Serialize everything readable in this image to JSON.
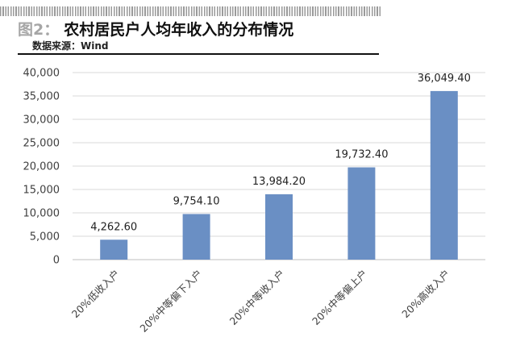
{
  "figure": {
    "number": "图2：",
    "title": "农村居民户人均年收入的分布情况",
    "source": "数据来源：Wind"
  },
  "chart_data": {
    "type": "bar",
    "categories": [
      "20%低收入户",
      "20%中等偏下入户",
      "20%中等收入户",
      "20%中等偏上户",
      "20%高收入户"
    ],
    "values": [
      4262.6,
      9754.1,
      13984.2,
      19732.4,
      36049.4
    ],
    "value_labels": [
      "4,262.60",
      "9,754.10",
      "13,984.20",
      "19,732.40",
      "36,049.40"
    ],
    "ylim": [
      0,
      40000
    ],
    "yticks": [
      0,
      5000,
      10000,
      15000,
      20000,
      25000,
      30000,
      35000,
      40000
    ],
    "ytick_labels": [
      "0",
      "5,000",
      "10,000",
      "15,000",
      "20,000",
      "25,000",
      "30,000",
      "35,000",
      "40,000"
    ],
    "grid": true,
    "legend": "none",
    "bar_color": "#6a8fc4",
    "grid_color": "#d9d9d9",
    "title": "",
    "xlabel": "",
    "ylabel": ""
  }
}
